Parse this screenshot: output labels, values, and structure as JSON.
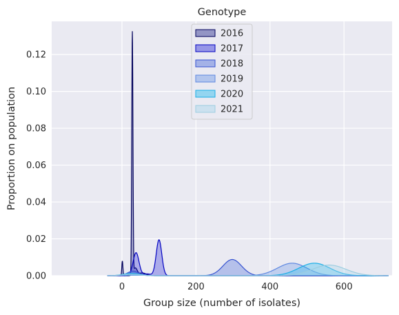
{
  "chart_data": {
    "type": "area",
    "title": "Genotype",
    "xlabel": "Group size (number of isolates)",
    "ylabel": "Proportion on population",
    "xlim": [
      -190,
      730
    ],
    "ylim": [
      0,
      0.138
    ],
    "xticks": [
      0,
      200,
      400,
      600
    ],
    "yticks": [
      0.0,
      0.02,
      0.04,
      0.06,
      0.08,
      0.1,
      0.12
    ],
    "grid": true,
    "legend_position": "top-center",
    "series": [
      {
        "name": "2016",
        "fill": "#2b2f8f",
        "stroke": "#00005a",
        "fill_opacity": 0.35,
        "components": [
          {
            "mu": 1,
            "sigma": 1.5,
            "height": 0.008
          },
          {
            "mu": 28,
            "sigma": 1.6,
            "height": 0.1315
          },
          {
            "mu": 36,
            "sigma": 5,
            "height": 0.004
          },
          {
            "mu": 55,
            "sigma": 10,
            "height": 0.0015
          }
        ]
      },
      {
        "name": "2017",
        "fill": "#1a1ad8",
        "stroke": "#0000c0",
        "fill_opacity": 0.3,
        "components": [
          {
            "mu": 38,
            "sigma": 8,
            "height": 0.0125
          },
          {
            "mu": 100,
            "sigma": 7.5,
            "height": 0.0195
          },
          {
            "mu": 68,
            "sigma": 10,
            "height": 0.001
          }
        ]
      },
      {
        "name": "2018",
        "fill": "#3d5fd8",
        "stroke": "#3552d0",
        "fill_opacity": 0.3,
        "components": [
          {
            "mu": 30,
            "sigma": 15,
            "height": 0.0025
          },
          {
            "mu": 298,
            "sigma": 25,
            "height": 0.0088
          }
        ]
      },
      {
        "name": "2019",
        "fill": "#5f8ee6",
        "stroke": "#5c86e0",
        "fill_opacity": 0.3,
        "components": [
          {
            "mu": 28,
            "sigma": 20,
            "height": 0.0015
          },
          {
            "mu": 460,
            "sigma": 40,
            "height": 0.0068
          }
        ]
      },
      {
        "name": "2020",
        "fill": "#14b6ee",
        "stroke": "#1aaee6",
        "fill_opacity": 0.3,
        "components": [
          {
            "mu": 25,
            "sigma": 22,
            "height": 0.0012
          },
          {
            "mu": 520,
            "sigma": 42,
            "height": 0.0068
          }
        ]
      },
      {
        "name": "2021",
        "fill": "#a8d8ea",
        "stroke": "#9ccde0",
        "fill_opacity": 0.35,
        "components": [
          {
            "mu": 25,
            "sigma": 22,
            "height": 0.0008
          },
          {
            "mu": 560,
            "sigma": 45,
            "height": 0.0058
          }
        ]
      }
    ]
  }
}
